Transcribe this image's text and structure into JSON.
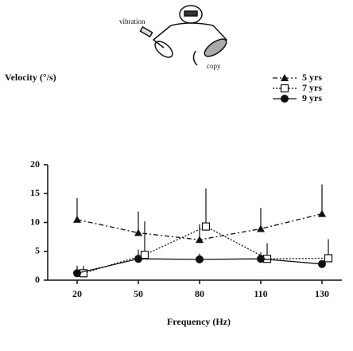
{
  "chart_data": {
    "type": "line",
    "y_label": "Velocity (°/s)",
    "x_label": "Frequency (Hz)",
    "annotations": [
      "vibration",
      "copy"
    ],
    "categories": [
      "20",
      "50",
      "80",
      "110",
      "130"
    ],
    "ylim": [
      0,
      20
    ],
    "yticks": [
      0,
      5,
      10,
      15,
      20
    ],
    "legend": "top-right",
    "series": [
      {
        "name": "5 yrs",
        "color": "#111111",
        "marker": "triangle",
        "dash": "dash-dot",
        "values": [
          10.5,
          8.2,
          7.0,
          8.9,
          11.5
        ],
        "errors": [
          3.7,
          3.7,
          2.7,
          3.6,
          5.1
        ]
      },
      {
        "name": "7 yrs",
        "color": "#111111",
        "marker": "open-square",
        "dash": "dotted",
        "values": [
          1.2,
          4.4,
          9.3,
          3.7,
          3.8
        ],
        "errors": [
          1.3,
          5.8,
          6.6,
          2.7,
          3.3
        ]
      },
      {
        "name": "9 yrs",
        "color": "#111111",
        "marker": "circle",
        "dash": "solid",
        "values": [
          1.2,
          3.7,
          3.6,
          3.7,
          2.8
        ],
        "errors": [
          1.3,
          1.6,
          1.0,
          1.1,
          null
        ]
      }
    ]
  }
}
